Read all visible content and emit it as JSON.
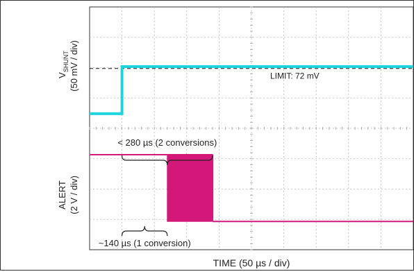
{
  "chart_data": {
    "type": "line",
    "xlabel": "TIME (50 µs / div)",
    "x_units": "µs",
    "x_per_div": 50,
    "xlim": [
      0,
      500
    ],
    "panels": [
      {
        "id": "vshunt",
        "ylabel_main": "V",
        "ylabel_sub": "SHUNT",
        "ylabel_scale": "(50 mV / div)",
        "y_units": "mV",
        "y_per_div": 50,
        "ylim": [
          -30,
          170
        ],
        "series": [
          {
            "color": "#1fd4dc",
            "x": [
              0,
              50,
              50,
              500
            ],
            "y": [
              0,
              0,
              75,
              75
            ]
          }
        ],
        "reference_line": {
          "y": 72,
          "label": "LIMIT: 72 mV",
          "style": "dashed"
        }
      },
      {
        "id": "alert",
        "ylabel_main": "ALERT",
        "ylabel_scale": "(2 V / div)",
        "y_units": "V",
        "y_per_div": 2,
        "ylim": [
          -1.4,
          4.4
        ],
        "series": [
          {
            "color": "#d4187a",
            "x": [
              0,
              120,
              120,
              190,
              190,
              500
            ],
            "y": [
              3.3,
              3.3,
              3.3,
              3.3,
              0,
              0
            ],
            "toggling_region": [
              120,
              190
            ]
          }
        ]
      }
    ],
    "annotations": [
      {
        "text": "< 280 µs (2 conversions)",
        "from": 50,
        "to": 190,
        "position": "above"
      },
      {
        "text": "~140 µs (1 conversion)",
        "from": 50,
        "to": 120,
        "position": "below"
      }
    ]
  }
}
